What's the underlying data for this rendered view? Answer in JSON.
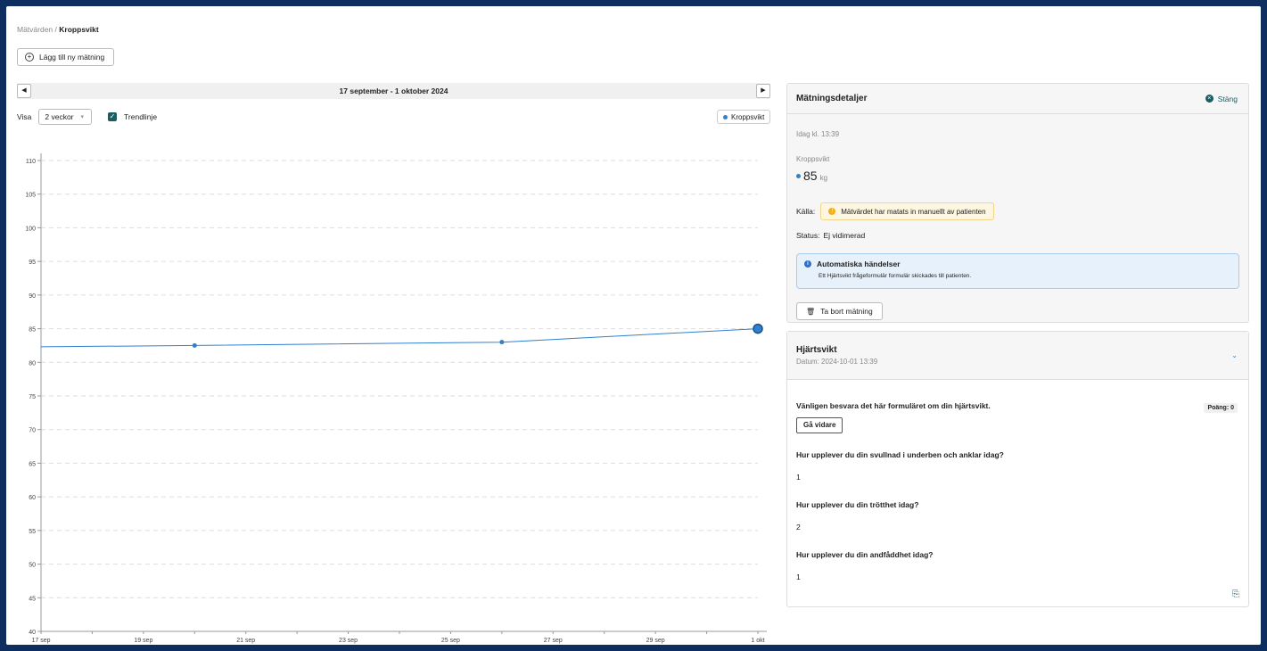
{
  "breadcrumb": {
    "parent": "Mätvärden",
    "separator": "/",
    "current": "Kroppsvikt"
  },
  "add_button": {
    "label": "Lägg till ny mätning"
  },
  "date_nav": {
    "range": "17 september - 1 oktober 2024",
    "prev": "◀",
    "next": "▶"
  },
  "controls": {
    "show_label": "Visa",
    "period_value": "2 veckor",
    "trend_label": "Trendlinje",
    "trend_checked": true
  },
  "legend": {
    "label": "Kroppsvikt"
  },
  "chart_data": {
    "type": "line",
    "series": [
      {
        "name": "Kroppsvikt",
        "points": [
          [
            "2024-09-20",
            82.5
          ],
          [
            "2024-09-26",
            83.0
          ],
          [
            "2024-10-01",
            85.0
          ]
        ],
        "color": "#2f80d0"
      }
    ],
    "trend_start": [
      "2024-09-17",
      82.3
    ],
    "x_ticks": [
      "17 sep",
      "19 sep",
      "21 sep",
      "23 sep",
      "25 sep",
      "27 sep",
      "29 sep",
      "1 okt"
    ],
    "y_ticks": [
      40,
      45,
      50,
      55,
      60,
      65,
      70,
      75,
      80,
      85,
      90,
      95,
      100,
      105,
      110
    ],
    "ylim": [
      40,
      110
    ],
    "xlim": [
      "2024-09-17",
      "2024-10-01"
    ],
    "grid": true,
    "highlighted": [
      "2024-10-01",
      85.0
    ]
  },
  "details": {
    "title": "Mätningsdetaljer",
    "close_label": "Stäng",
    "timestamp": "Idag kl. 13:39",
    "measure_label": "Kroppsvikt",
    "value": "85",
    "unit": "kg",
    "source_label": "Källa:",
    "source_text": "Mätvärdet har matats in manuellt av patienten",
    "status_label": "Status:",
    "status_value": "Ej vidimerad",
    "info_title": "Automatiska händelser",
    "info_text": "Ett Hjärtsvikt frågeformulär formulär skickades till patienten.",
    "delete_label": "Ta bort mätning"
  },
  "form": {
    "title": "Hjärtsvikt",
    "date": "Datum: 2024-10-01 13:39",
    "intro": "Vänligen besvara det här formuläret om din hjärtsvikt.",
    "score": "Poäng: 0",
    "next_label": "Gå vidare",
    "questions": [
      {
        "q": "Hur upplever du din svullnad i underben och anklar idag?",
        "a": "1"
      },
      {
        "q": "Hur upplever du din trötthet idag?",
        "a": "2"
      },
      {
        "q": "Hur upplever du din andfåddhet idag?",
        "a": "1"
      }
    ]
  },
  "colors": {
    "accent": "#1b5d60",
    "series": "#2f80d0",
    "frame": "#0d2e5e"
  }
}
